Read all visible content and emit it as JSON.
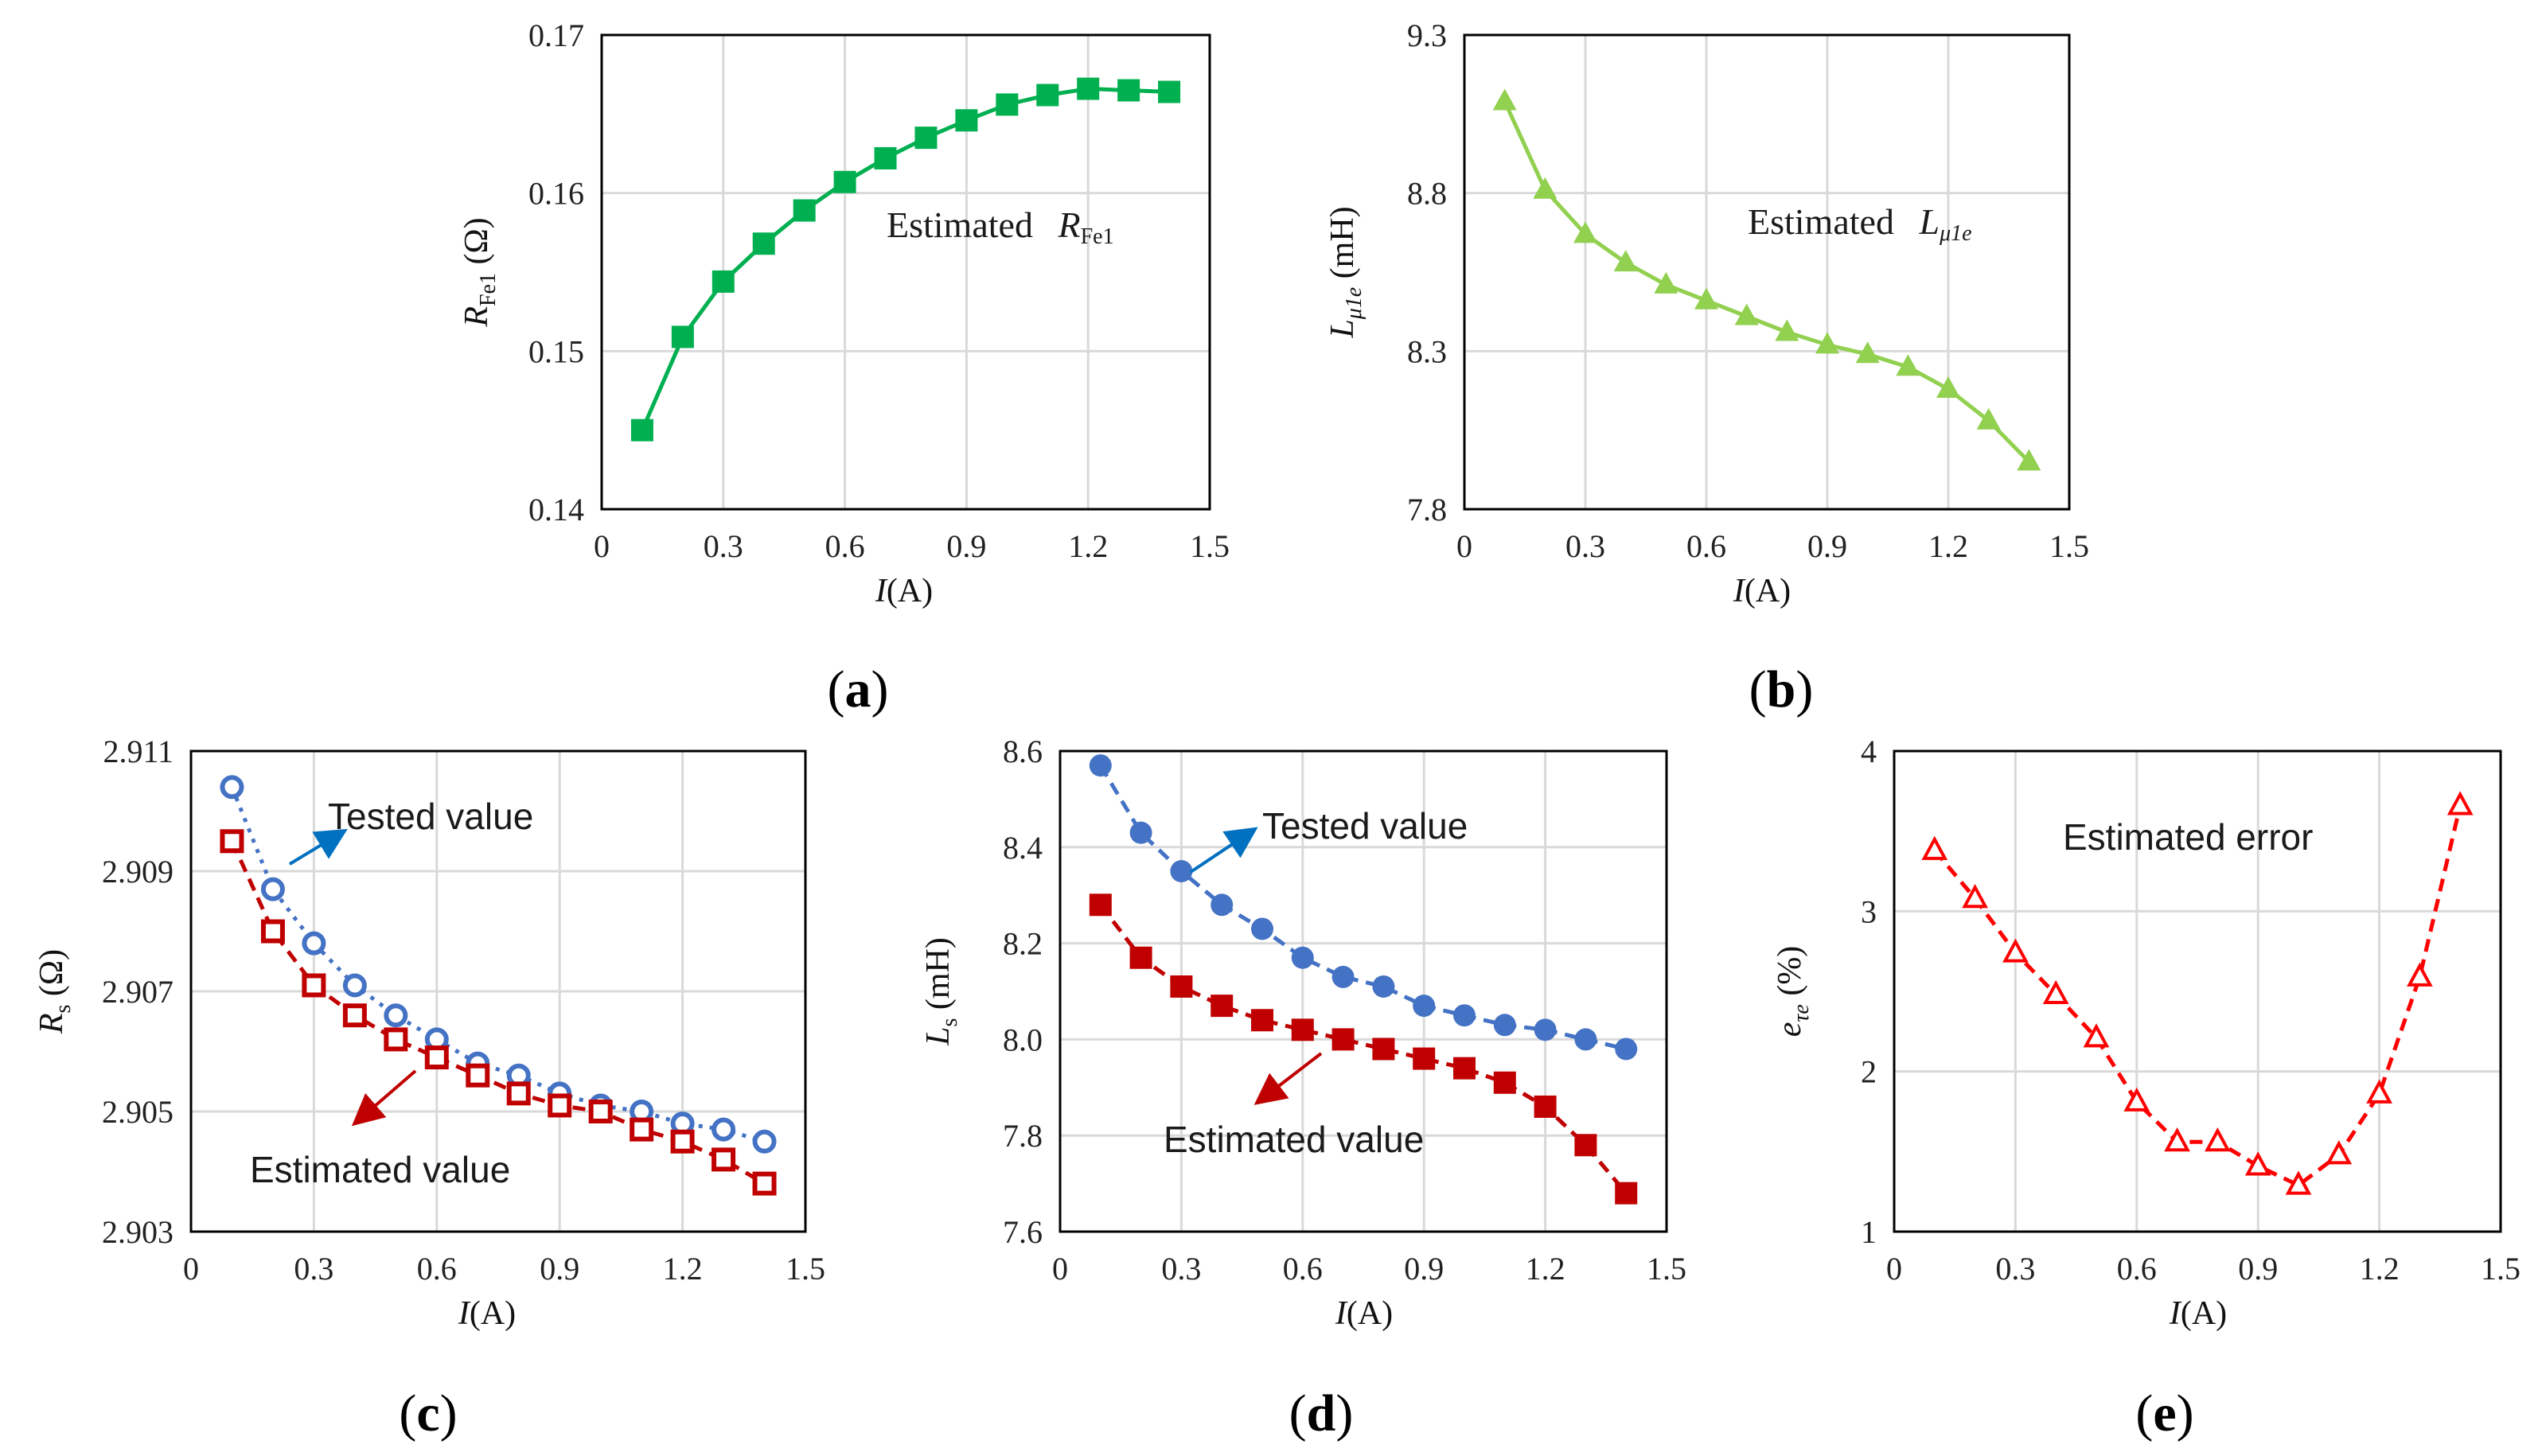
{
  "chart_data": [
    {
      "id": "a",
      "type": "line",
      "panel_label": "a",
      "xlabel_var": "I",
      "xlabel_unit": "(A)",
      "ylabel_var": "R",
      "ylabel_sub": "Fe1",
      "ylabel_unit": " (Ω)",
      "xlim": [
        0,
        1.5
      ],
      "ylim": [
        0.14,
        0.17
      ],
      "xticks": [
        "0",
        "0.3",
        "0.6",
        "0.9",
        "1.2",
        "1.5"
      ],
      "xtick_values": [
        0,
        0.3,
        0.6,
        0.9,
        1.2,
        1.5
      ],
      "yticks": [
        "0.14",
        "0.15",
        "0.16",
        "0.17"
      ],
      "ytick_values": [
        0.14,
        0.15,
        0.16,
        0.17
      ],
      "annotation": {
        "text": "Estimated",
        "var": "R",
        "sub": "Fe1"
      },
      "series": [
        {
          "name": "Estimated RFe1",
          "color": "#00b050",
          "marker": "filled-square",
          "line": "solid",
          "x": [
            0.1,
            0.2,
            0.3,
            0.4,
            0.5,
            0.6,
            0.7,
            0.8,
            0.9,
            1.0,
            1.1,
            1.2,
            1.3,
            1.4
          ],
          "y": [
            0.145,
            0.1509,
            0.1544,
            0.1568,
            0.1589,
            0.1607,
            0.1622,
            0.1635,
            0.1646,
            0.1656,
            0.1662,
            0.1666,
            0.1665,
            0.1664
          ]
        }
      ]
    },
    {
      "id": "b",
      "type": "line",
      "panel_label": "b",
      "xlabel_var": "I",
      "xlabel_unit": "(A)",
      "ylabel_var": "L",
      "ylabel_sub": "μ1e",
      "ylabel_unit": " (mH)",
      "xlim": [
        0,
        1.5
      ],
      "ylim": [
        7.8,
        9.3
      ],
      "xticks": [
        "0",
        "0.3",
        "0.6",
        "0.9",
        "1.2",
        "1.5"
      ],
      "xtick_values": [
        0,
        0.3,
        0.6,
        0.9,
        1.2,
        1.5
      ],
      "yticks": [
        "7.8",
        "8.3",
        "8.8",
        "9.3"
      ],
      "ytick_values": [
        7.8,
        8.3,
        8.8,
        9.3
      ],
      "annotation": {
        "text": "Estimated",
        "var": "L",
        "sub": "μ1e"
      },
      "series": [
        {
          "name": "Estimated Lμ1e",
          "color": "#92d050",
          "marker": "filled-triangle",
          "line": "solid",
          "x": [
            0.1,
            0.2,
            0.3,
            0.4,
            0.5,
            0.6,
            0.7,
            0.8,
            0.9,
            1.0,
            1.1,
            1.2,
            1.3,
            1.4
          ],
          "y": [
            9.09,
            8.81,
            8.67,
            8.58,
            8.51,
            8.46,
            8.41,
            8.36,
            8.32,
            8.29,
            8.25,
            8.18,
            8.08,
            7.95
          ]
        }
      ]
    },
    {
      "id": "c",
      "type": "line",
      "panel_label": "c",
      "xlabel_var": "I",
      "xlabel_unit": "(A)",
      "ylabel_var": "R",
      "ylabel_sub": "s",
      "ylabel_unit": " (Ω)",
      "xlim": [
        0,
        1.5
      ],
      "ylim": [
        2.903,
        2.911
      ],
      "xticks": [
        "0",
        "0.3",
        "0.6",
        "0.9",
        "1.2",
        "1.5"
      ],
      "xtick_values": [
        0,
        0.3,
        0.6,
        0.9,
        1.2,
        1.5
      ],
      "yticks": [
        "2.903",
        "2.905",
        "2.907",
        "2.909",
        "2.911"
      ],
      "ytick_values": [
        2.903,
        2.905,
        2.907,
        2.909,
        2.911
      ],
      "annotations": [
        {
          "text": "Tested value",
          "color": "#0070c0"
        },
        {
          "text": "Estimated value",
          "color": "#c00000"
        }
      ],
      "series": [
        {
          "name": "Tested value",
          "color": "#4472c4",
          "marker": "open-circle",
          "line": "dotted",
          "x": [
            0.1,
            0.2,
            0.3,
            0.4,
            0.5,
            0.6,
            0.7,
            0.8,
            0.9,
            1.0,
            1.1,
            1.2,
            1.3,
            1.4
          ],
          "y": [
            2.9104,
            2.9087,
            2.9078,
            2.9071,
            2.9066,
            2.9062,
            2.9058,
            2.9056,
            2.9053,
            2.9051,
            2.905,
            2.9048,
            2.9047,
            2.9045
          ]
        },
        {
          "name": "Estimated value",
          "color": "#c00000",
          "marker": "open-square",
          "line": "dashed",
          "x": [
            0.1,
            0.2,
            0.3,
            0.4,
            0.5,
            0.6,
            0.7,
            0.8,
            0.9,
            1.0,
            1.1,
            1.2,
            1.3,
            1.4
          ],
          "y": [
            2.9095,
            2.908,
            2.9071,
            2.9066,
            2.9062,
            2.9059,
            2.9056,
            2.9053,
            2.9051,
            2.905,
            2.9047,
            2.9045,
            2.9042,
            2.9038
          ]
        }
      ]
    },
    {
      "id": "d",
      "type": "line",
      "panel_label": "d",
      "xlabel_var": "I",
      "xlabel_unit": "(A)",
      "ylabel_var": "L",
      "ylabel_sub": "s",
      "ylabel_unit": " (mH)",
      "xlim": [
        0,
        1.5
      ],
      "ylim": [
        7.6,
        8.6
      ],
      "xticks": [
        "0",
        "0.3",
        "0.6",
        "0.9",
        "1.2",
        "1.5"
      ],
      "xtick_values": [
        0,
        0.3,
        0.6,
        0.9,
        1.2,
        1.5
      ],
      "yticks": [
        "7.6",
        "7.8",
        "8.0",
        "8.2",
        "8.4",
        "8.6"
      ],
      "ytick_values": [
        7.6,
        7.8,
        8.0,
        8.2,
        8.4,
        8.6
      ],
      "annotations": [
        {
          "text": "Tested value",
          "color": "#0070c0"
        },
        {
          "text": "Estimated value",
          "color": "#c00000"
        }
      ],
      "series": [
        {
          "name": "Tested value",
          "color": "#4472c4",
          "marker": "filled-circle",
          "line": "dashed",
          "x": [
            0.1,
            0.2,
            0.3,
            0.4,
            0.5,
            0.6,
            0.7,
            0.8,
            0.9,
            1.0,
            1.1,
            1.2,
            1.3,
            1.4
          ],
          "y": [
            8.57,
            8.43,
            8.35,
            8.28,
            8.23,
            8.17,
            8.13,
            8.11,
            8.07,
            8.05,
            8.03,
            8.02,
            8.0,
            7.98
          ]
        },
        {
          "name": "Estimated value",
          "color": "#c00000",
          "marker": "filled-square",
          "line": "dashed",
          "x": [
            0.1,
            0.2,
            0.3,
            0.4,
            0.5,
            0.6,
            0.7,
            0.8,
            0.9,
            1.0,
            1.1,
            1.2,
            1.3,
            1.4
          ],
          "y": [
            8.28,
            8.17,
            8.11,
            8.07,
            8.04,
            8.02,
            8.0,
            7.98,
            7.96,
            7.94,
            7.91,
            7.86,
            7.78,
            7.68
          ]
        }
      ]
    },
    {
      "id": "e",
      "type": "line",
      "panel_label": "e",
      "xlabel_var": "I",
      "xlabel_unit": "(A)",
      "ylabel_var": "e",
      "ylabel_sub": "τe",
      "ylabel_unit": " (%)",
      "xlim": [
        0,
        1.5
      ],
      "ylim": [
        1,
        4
      ],
      "xticks": [
        "0",
        "0.3",
        "0.6",
        "0.9",
        "1.2",
        "1.5"
      ],
      "xtick_values": [
        0,
        0.3,
        0.6,
        0.9,
        1.2,
        1.5
      ],
      "yticks": [
        "1",
        "2",
        "3",
        "4"
      ],
      "ytick_values": [
        1,
        2,
        3,
        4
      ],
      "annotation": {
        "text": "Estimated error"
      },
      "series": [
        {
          "name": "Estimated error",
          "color": "#ff0000",
          "marker": "open-triangle",
          "line": "dashed",
          "x": [
            0.1,
            0.2,
            0.3,
            0.4,
            0.5,
            0.6,
            0.7,
            0.8,
            0.9,
            1.0,
            1.1,
            1.2,
            1.3,
            1.4
          ],
          "y": [
            3.38,
            3.08,
            2.74,
            2.48,
            2.21,
            1.81,
            1.56,
            1.56,
            1.41,
            1.29,
            1.48,
            1.86,
            2.59,
            3.66
          ]
        }
      ]
    }
  ]
}
